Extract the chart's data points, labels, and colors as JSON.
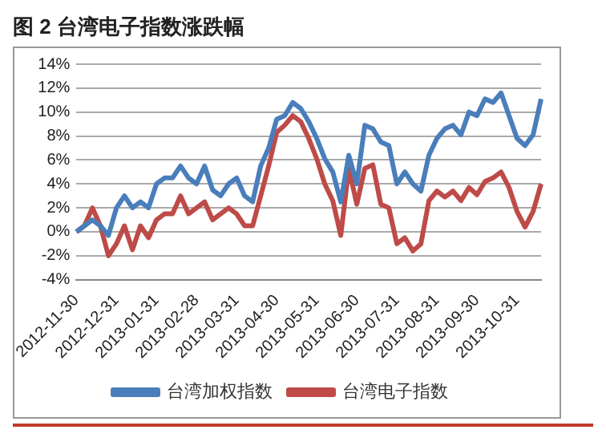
{
  "chart_data": {
    "type": "line",
    "title": "图 2 台湾电子指数涨跌幅",
    "categories": [
      "2012-11-30",
      null,
      null,
      null,
      null,
      "2012-12-31",
      null,
      null,
      null,
      null,
      "2013-01-31",
      null,
      null,
      null,
      null,
      "2013-02-28",
      null,
      null,
      null,
      null,
      "2013-03-31",
      null,
      null,
      null,
      null,
      "2013-04-30",
      null,
      null,
      null,
      null,
      "2013-05-31",
      null,
      null,
      null,
      null,
      "2013-06-30",
      null,
      null,
      null,
      null,
      "2013-07-31",
      null,
      null,
      null,
      null,
      "2013-08-31",
      null,
      null,
      null,
      null,
      "2013-09-30",
      null,
      null,
      null,
      null,
      "2013-10-31",
      null,
      null,
      null
    ],
    "series": [
      {
        "name": "台湾加权指数",
        "color": "#4a7ebb",
        "values": [
          0,
          0.5,
          1,
          0.5,
          -0.3,
          2,
          3,
          2,
          2.5,
          2,
          4,
          4.5,
          4.5,
          5.5,
          4.5,
          4,
          5.5,
          3.5,
          3,
          4,
          4.5,
          3,
          2.5,
          5.5,
          7,
          9.4,
          9.7,
          10.8,
          10.3,
          9.2,
          7.8,
          6.1,
          5,
          2.5,
          6.4,
          4,
          8.9,
          8.6,
          7.5,
          7.2,
          4,
          5,
          4,
          3.4,
          6.4,
          7.8,
          8.6,
          8.9,
          8.1,
          10,
          9.7,
          11.1,
          10.8,
          11.6,
          9.7,
          7.8,
          7.2,
          8.1,
          11.1
        ]
      },
      {
        "name": "台湾电子指数",
        "color": "#be4b48",
        "values": [
          0,
          0.5,
          2,
          0.5,
          -2,
          -1,
          0.5,
          -1.5,
          0.5,
          -0.5,
          1,
          1.5,
          1.5,
          3,
          1.5,
          2,
          2.5,
          1,
          1.5,
          2,
          1.5,
          0.5,
          0.5,
          3,
          5.5,
          8.3,
          8.9,
          9.7,
          9.2,
          7.8,
          6.1,
          4,
          2.6,
          -0.3,
          5.3,
          2.3,
          5.3,
          5.6,
          2.3,
          2,
          -1,
          -0.5,
          -1.6,
          -1,
          2.6,
          3.4,
          2.9,
          3.4,
          2.6,
          3.7,
          3.1,
          4.2,
          4.5,
          5,
          3.7,
          1.7,
          0.4,
          1.7,
          4
        ]
      }
    ],
    "ylim": [
      -4,
      14
    ],
    "yticks": [
      {
        "value": -4,
        "label": "-4%"
      },
      {
        "value": -2,
        "label": "-2%"
      },
      {
        "value": 0,
        "label": "0%"
      },
      {
        "value": 2,
        "label": "2%"
      },
      {
        "value": 4,
        "label": "4%"
      },
      {
        "value": 6,
        "label": "6%"
      },
      {
        "value": 8,
        "label": "8%"
      },
      {
        "value": 10,
        "label": "10%"
      },
      {
        "value": 12,
        "label": "12%"
      },
      {
        "value": 14,
        "label": "14%"
      }
    ],
    "grid": "y",
    "legend": "bottom",
    "marker": "none",
    "line_style": "solid"
  }
}
